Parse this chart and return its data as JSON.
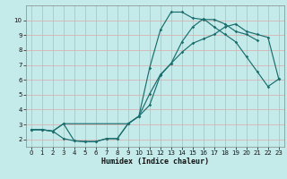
{
  "xlabel": "Humidex (Indice chaleur)",
  "bg_color": "#c5eaea",
  "grid_color": "#dba8a8",
  "line_color": "#1a6e6e",
  "xlim": [
    -0.5,
    23.5
  ],
  "ylim": [
    1.5,
    11.0
  ],
  "xticks": [
    0,
    1,
    2,
    3,
    4,
    5,
    6,
    7,
    8,
    9,
    10,
    11,
    12,
    13,
    14,
    15,
    16,
    17,
    18,
    19,
    20,
    21,
    22,
    23
  ],
  "yticks": [
    2,
    3,
    4,
    5,
    6,
    7,
    8,
    9,
    10
  ],
  "line1_x": [
    0,
    1,
    2,
    3,
    4,
    5,
    6,
    7,
    8,
    9,
    10,
    11,
    12,
    13,
    14,
    15,
    16,
    17,
    18,
    19,
    20,
    21
  ],
  "line1_y": [
    2.65,
    2.65,
    2.55,
    2.05,
    1.9,
    1.85,
    1.85,
    2.05,
    2.05,
    3.05,
    3.55,
    6.8,
    9.35,
    10.55,
    10.55,
    10.15,
    10.05,
    10.05,
    9.75,
    9.25,
    9.05,
    8.65
  ],
  "line2_x": [
    0,
    1,
    2,
    3,
    4,
    5,
    6,
    7,
    8,
    9,
    10,
    11,
    12,
    13,
    14,
    15,
    16,
    17,
    18,
    19,
    20,
    21,
    22,
    23
  ],
  "line2_y": [
    2.65,
    2.65,
    2.55,
    3.05,
    1.9,
    1.85,
    1.85,
    2.05,
    2.05,
    3.05,
    3.55,
    4.3,
    6.3,
    7.1,
    7.85,
    8.45,
    8.75,
    9.05,
    9.55,
    9.75,
    9.25,
    9.05,
    8.85,
    6.05
  ],
  "line3_x": [
    0,
    1,
    2,
    3,
    9,
    10,
    11,
    12,
    13,
    14,
    15,
    16,
    17,
    18,
    19,
    20,
    21,
    22,
    23
  ],
  "line3_y": [
    2.65,
    2.65,
    2.55,
    3.05,
    3.05,
    3.55,
    5.05,
    6.35,
    7.1,
    8.55,
    9.55,
    10.1,
    9.55,
    9.05,
    8.55,
    7.55,
    6.55,
    5.55,
    6.05
  ]
}
